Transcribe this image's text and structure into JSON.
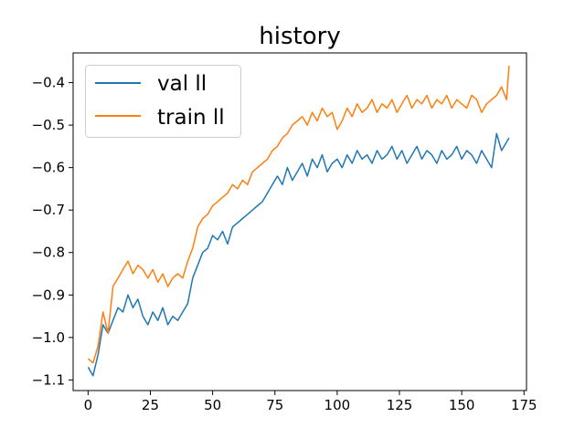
{
  "chart_data": {
    "type": "line",
    "title": "history",
    "xlabel": "",
    "ylabel": "",
    "xlim": [
      -6,
      176
    ],
    "ylim": [
      -1.125,
      -0.33
    ],
    "xticks": [
      0,
      25,
      50,
      75,
      100,
      125,
      150,
      175
    ],
    "xtick_labels": [
      "0",
      "25",
      "50",
      "75",
      "100",
      "125",
      "150",
      "175"
    ],
    "yticks": [
      -1.1,
      -1.0,
      -0.9,
      -0.8,
      -0.7,
      -0.6,
      -0.5,
      -0.4
    ],
    "ytick_labels": [
      "−1.1",
      "−1.0",
      "−0.9",
      "−0.8",
      "−0.7",
      "−0.6",
      "−0.5",
      "−0.4"
    ],
    "grid": false,
    "legend_position": "top-left",
    "series": [
      {
        "name": "val ll",
        "color": "#1f77b4",
        "x": [
          0,
          2,
          4,
          6,
          8,
          10,
          12,
          14,
          16,
          18,
          20,
          22,
          24,
          26,
          28,
          30,
          32,
          34,
          36,
          38,
          40,
          42,
          44,
          46,
          48,
          50,
          52,
          54,
          56,
          58,
          60,
          62,
          64,
          66,
          68,
          70,
          72,
          74,
          76,
          78,
          80,
          82,
          84,
          86,
          88,
          90,
          92,
          94,
          96,
          98,
          100,
          102,
          104,
          106,
          108,
          110,
          112,
          114,
          116,
          118,
          120,
          122,
          124,
          126,
          128,
          130,
          132,
          134,
          136,
          138,
          140,
          142,
          144,
          146,
          148,
          150,
          152,
          154,
          156,
          158,
          160,
          162,
          164,
          166,
          168,
          169
        ],
        "values": [
          -1.07,
          -1.09,
          -1.04,
          -0.97,
          -0.99,
          -0.96,
          -0.93,
          -0.94,
          -0.9,
          -0.93,
          -0.91,
          -0.95,
          -0.97,
          -0.94,
          -0.96,
          -0.93,
          -0.97,
          -0.95,
          -0.96,
          -0.94,
          -0.92,
          -0.86,
          -0.83,
          -0.8,
          -0.79,
          -0.76,
          -0.77,
          -0.75,
          -0.78,
          -0.74,
          -0.73,
          -0.72,
          -0.71,
          -0.7,
          -0.69,
          -0.68,
          -0.66,
          -0.64,
          -0.62,
          -0.64,
          -0.6,
          -0.63,
          -0.61,
          -0.59,
          -0.62,
          -0.58,
          -0.6,
          -0.57,
          -0.61,
          -0.59,
          -0.58,
          -0.6,
          -0.57,
          -0.59,
          -0.56,
          -0.58,
          -0.57,
          -0.59,
          -0.56,
          -0.58,
          -0.57,
          -0.55,
          -0.58,
          -0.56,
          -0.59,
          -0.57,
          -0.55,
          -0.58,
          -0.56,
          -0.57,
          -0.59,
          -0.56,
          -0.58,
          -0.57,
          -0.55,
          -0.58,
          -0.56,
          -0.57,
          -0.59,
          -0.56,
          -0.58,
          -0.6,
          -0.52,
          -0.56,
          -0.54,
          -0.53
        ]
      },
      {
        "name": "train ll",
        "color": "#ff7f0e",
        "x": [
          0,
          2,
          4,
          6,
          8,
          10,
          12,
          14,
          16,
          18,
          20,
          22,
          24,
          26,
          28,
          30,
          32,
          34,
          36,
          38,
          40,
          42,
          44,
          46,
          48,
          50,
          52,
          54,
          56,
          58,
          60,
          62,
          64,
          66,
          68,
          70,
          72,
          74,
          76,
          78,
          80,
          82,
          84,
          86,
          88,
          90,
          92,
          94,
          96,
          98,
          100,
          102,
          104,
          106,
          108,
          110,
          112,
          114,
          116,
          118,
          120,
          122,
          124,
          126,
          128,
          130,
          132,
          134,
          136,
          138,
          140,
          142,
          144,
          146,
          148,
          150,
          152,
          154,
          156,
          158,
          160,
          162,
          164,
          166,
          168,
          169
        ],
        "values": [
          -1.05,
          -1.06,
          -1.02,
          -0.94,
          -0.99,
          -0.88,
          -0.86,
          -0.84,
          -0.82,
          -0.85,
          -0.83,
          -0.84,
          -0.86,
          -0.84,
          -0.87,
          -0.85,
          -0.88,
          -0.86,
          -0.85,
          -0.86,
          -0.82,
          -0.79,
          -0.74,
          -0.72,
          -0.71,
          -0.69,
          -0.68,
          -0.67,
          -0.66,
          -0.64,
          -0.65,
          -0.63,
          -0.64,
          -0.61,
          -0.6,
          -0.59,
          -0.58,
          -0.56,
          -0.55,
          -0.53,
          -0.52,
          -0.5,
          -0.49,
          -0.48,
          -0.5,
          -0.47,
          -0.49,
          -0.46,
          -0.48,
          -0.47,
          -0.51,
          -0.49,
          -0.46,
          -0.48,
          -0.45,
          -0.47,
          -0.46,
          -0.44,
          -0.47,
          -0.45,
          -0.46,
          -0.44,
          -0.47,
          -0.45,
          -0.43,
          -0.46,
          -0.44,
          -0.45,
          -0.43,
          -0.46,
          -0.44,
          -0.45,
          -0.43,
          -0.46,
          -0.44,
          -0.45,
          -0.46,
          -0.43,
          -0.44,
          -0.47,
          -0.45,
          -0.44,
          -0.43,
          -0.41,
          -0.44,
          -0.36
        ]
      }
    ]
  }
}
